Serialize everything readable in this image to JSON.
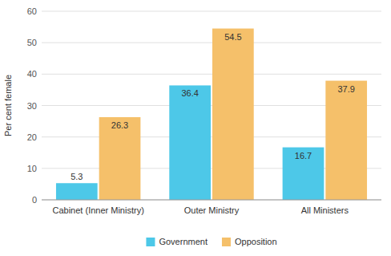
{
  "chart_data": {
    "type": "bar",
    "categories": [
      "Cabinet (Inner Ministry)",
      "Outer Ministry",
      "All Ministers"
    ],
    "series": [
      {
        "name": "Government",
        "color": "#4DC8E8",
        "values": [
          5.3,
          36.4,
          16.7
        ]
      },
      {
        "name": "Opposition",
        "color": "#F5C06A",
        "values": [
          26.3,
          54.5,
          37.9
        ]
      }
    ],
    "y_label": "Per cent female",
    "ylim": [
      0,
      60
    ],
    "yticks": [
      0,
      10,
      20,
      30,
      40,
      50,
      60
    ],
    "grid": true,
    "legend": "bottom",
    "data_labels": true
  }
}
